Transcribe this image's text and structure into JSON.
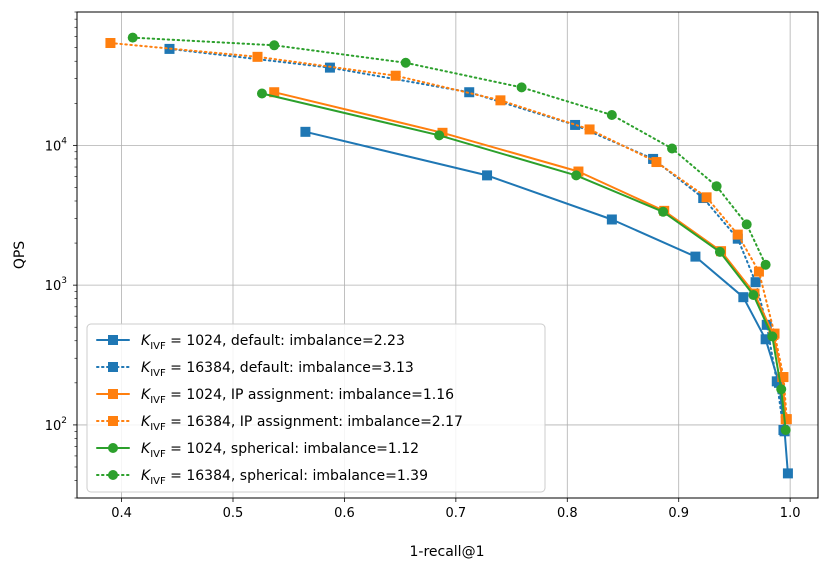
{
  "chart_data": {
    "type": "line",
    "title": "",
    "xlabel": "1-recall@1",
    "ylabel": "QPS",
    "xlim": [
      0.36,
      1.025
    ],
    "ylim": [
      30,
      90000
    ],
    "yscale": "log",
    "grid": true,
    "legend_position": "lower-left",
    "x_ticks": [
      0.4,
      0.5,
      0.6,
      0.7,
      0.8,
      0.9,
      1.0
    ],
    "x_tick_labels": [
      "0.4",
      "0.5",
      "0.6",
      "0.7",
      "0.8",
      "0.9",
      "1.0"
    ],
    "y_ticks": [
      100,
      1000,
      10000
    ],
    "y_tick_labels": [
      {
        "base": "10",
        "exp": "2"
      },
      {
        "base": "10",
        "exp": "3"
      },
      {
        "base": "10",
        "exp": "4"
      }
    ],
    "series": [
      {
        "name": "default: imbalance=2.23",
        "k_label": "K",
        "k_sub": "IVF",
        "k_value": " = 1024, ",
        "label_rest": "default: imbalance=2.23",
        "color": "#1f77b4",
        "linestyle": "solid",
        "marker": "square",
        "x": [
          0.565,
          0.728,
          0.84,
          0.915,
          0.958,
          0.978,
          0.99,
          0.995,
          0.998
        ],
        "y": [
          12500,
          6100,
          2950,
          1600,
          820,
          410,
          200,
          90,
          45
        ]
      },
      {
        "name": "default: imbalance=3.13",
        "k_label": "K",
        "k_sub": "IVF",
        "k_value": " = 16384, ",
        "label_rest": "default: imbalance=3.13",
        "color": "#1f77b4",
        "linestyle": "dotted",
        "marker": "square",
        "x": [
          0.443,
          0.587,
          0.712,
          0.807,
          0.877,
          0.922,
          0.953,
          0.969,
          0.979,
          0.988,
          0.994
        ],
        "y": [
          49000,
          36000,
          24000,
          14000,
          8000,
          4200,
          2150,
          1050,
          520,
          205,
          92
        ]
      },
      {
        "name": "IP assignment: imbalance=1.16",
        "k_label": "K",
        "k_sub": "IVF",
        "k_value": " = 1024, ",
        "label_rest": "IP assignment: imbalance=1.16",
        "color": "#ff7f0e",
        "linestyle": "solid",
        "marker": "square",
        "x": [
          0.537,
          0.688,
          0.81,
          0.887,
          0.938,
          0.968,
          0.985,
          0.993,
          0.996
        ],
        "y": [
          24000,
          12300,
          6500,
          3400,
          1750,
          870,
          440,
          220,
          110
        ]
      },
      {
        "name": "IP assignment: imbalance=2.17",
        "k_label": "K",
        "k_sub": "IVF",
        "k_value": " = 16384, ",
        "label_rest": "IP assignment: imbalance=2.17",
        "color": "#ff7f0e",
        "linestyle": "dotted",
        "marker": "square",
        "x": [
          0.39,
          0.522,
          0.646,
          0.74,
          0.82,
          0.88,
          0.925,
          0.953,
          0.972,
          0.986,
          0.994,
          0.997
        ],
        "y": [
          54000,
          43000,
          31500,
          21000,
          13000,
          7600,
          4250,
          2300,
          1250,
          450,
          220,
          110
        ]
      },
      {
        "name": "spherical: imbalance=1.12",
        "k_label": "K",
        "k_sub": "IVF",
        "k_value": " = 1024, ",
        "label_rest": "spherical: imbalance=1.12",
        "color": "#2ca02c",
        "linestyle": "solid",
        "marker": "circle",
        "x": [
          0.526,
          0.685,
          0.808,
          0.886,
          0.937,
          0.967,
          0.984,
          0.992,
          0.996
        ],
        "y": [
          23500,
          11800,
          6100,
          3350,
          1730,
          850,
          430,
          180,
          92
        ]
      },
      {
        "name": "spherical: imbalance=1.39",
        "k_label": "K",
        "k_sub": "IVF",
        "k_value": " = 16384, ",
        "label_rest": "spherical: imbalance=1.39",
        "color": "#2ca02c",
        "linestyle": "dotted",
        "marker": "circle",
        "x": [
          0.41,
          0.537,
          0.655,
          0.759,
          0.84,
          0.894,
          0.934,
          0.961,
          0.978
        ],
        "y": [
          59000,
          52000,
          39000,
          26000,
          16500,
          9500,
          5100,
          2720,
          1400
        ]
      }
    ]
  }
}
